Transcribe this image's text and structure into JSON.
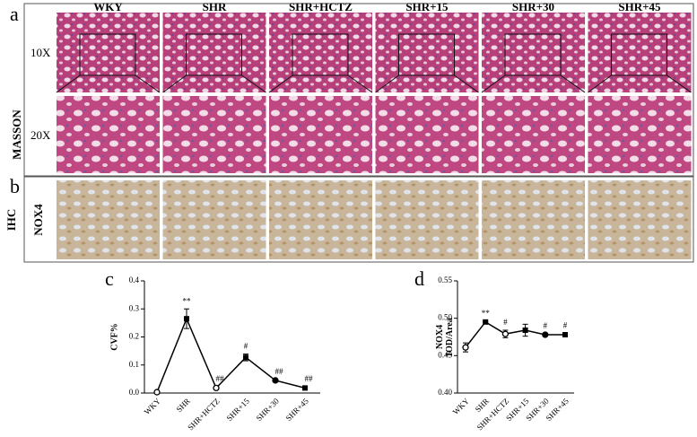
{
  "panels": {
    "a_label": "a",
    "b_label": "b",
    "masson_label": "MASSON",
    "ihc_label": "IHC",
    "nox4_label": "NOX4",
    "mag_labels": [
      "10X",
      "20X"
    ],
    "columns": [
      "WKY",
      "SHR",
      "SHR+HCTZ",
      "SHR+15",
      "SHR+30",
      "SHR+45"
    ]
  },
  "chart_data": [
    {
      "type": "line",
      "panel_label": "c",
      "ylabel": [
        "CVF%"
      ],
      "categories": [
        "WKY",
        "SHR",
        "SHR+HCTZ",
        "SHR+15",
        "SHR+30",
        "SHR+45"
      ],
      "series": [
        {
          "color": "#000000",
          "values": [
            0.003,
            0.265,
            0.018,
            0.127,
            0.045,
            0.018
          ],
          "errors": [
            0.002,
            0.035,
            0.005,
            0.012,
            0.003,
            0.005
          ],
          "annotations": [
            null,
            "**",
            "##",
            "#",
            "##",
            "##"
          ]
        }
      ],
      "ylim": [
        0,
        0.4
      ],
      "yticks": [
        {
          "value": 0,
          "label": "0.0"
        },
        {
          "value": 0.1,
          "label": "0.1"
        },
        {
          "value": 0.2,
          "label": "0.2"
        },
        {
          "value": 0.3,
          "label": "0.3"
        },
        {
          "value": 0.4,
          "label": "0.4"
        }
      ]
    },
    {
      "type": "line",
      "panel_label": "d",
      "ylabel": [
        "NOX4",
        "IOD/Area"
      ],
      "categories": [
        "WKY",
        "SHR",
        "SHR+HCTZ",
        "SHR+15",
        "SHR+30",
        "SHR+45"
      ],
      "series": [
        {
          "color": "#000000",
          "values": [
            0.461,
            0.495,
            0.479,
            0.484,
            0.478,
            0.478
          ],
          "errors": [
            0.006,
            0.001,
            0.005,
            0.008,
            0.001,
            0.002
          ],
          "annotations": [
            null,
            "**",
            "#",
            null,
            "#",
            "#"
          ]
        }
      ],
      "ylim": [
        0.4,
        0.55
      ],
      "yticks": [
        {
          "value": 0.4,
          "label": "0.40"
        },
        {
          "value": 0.45,
          "label": "0.45"
        },
        {
          "value": 0.5,
          "label": "0.50"
        },
        {
          "value": 0.55,
          "label": "0.55"
        }
      ]
    }
  ]
}
